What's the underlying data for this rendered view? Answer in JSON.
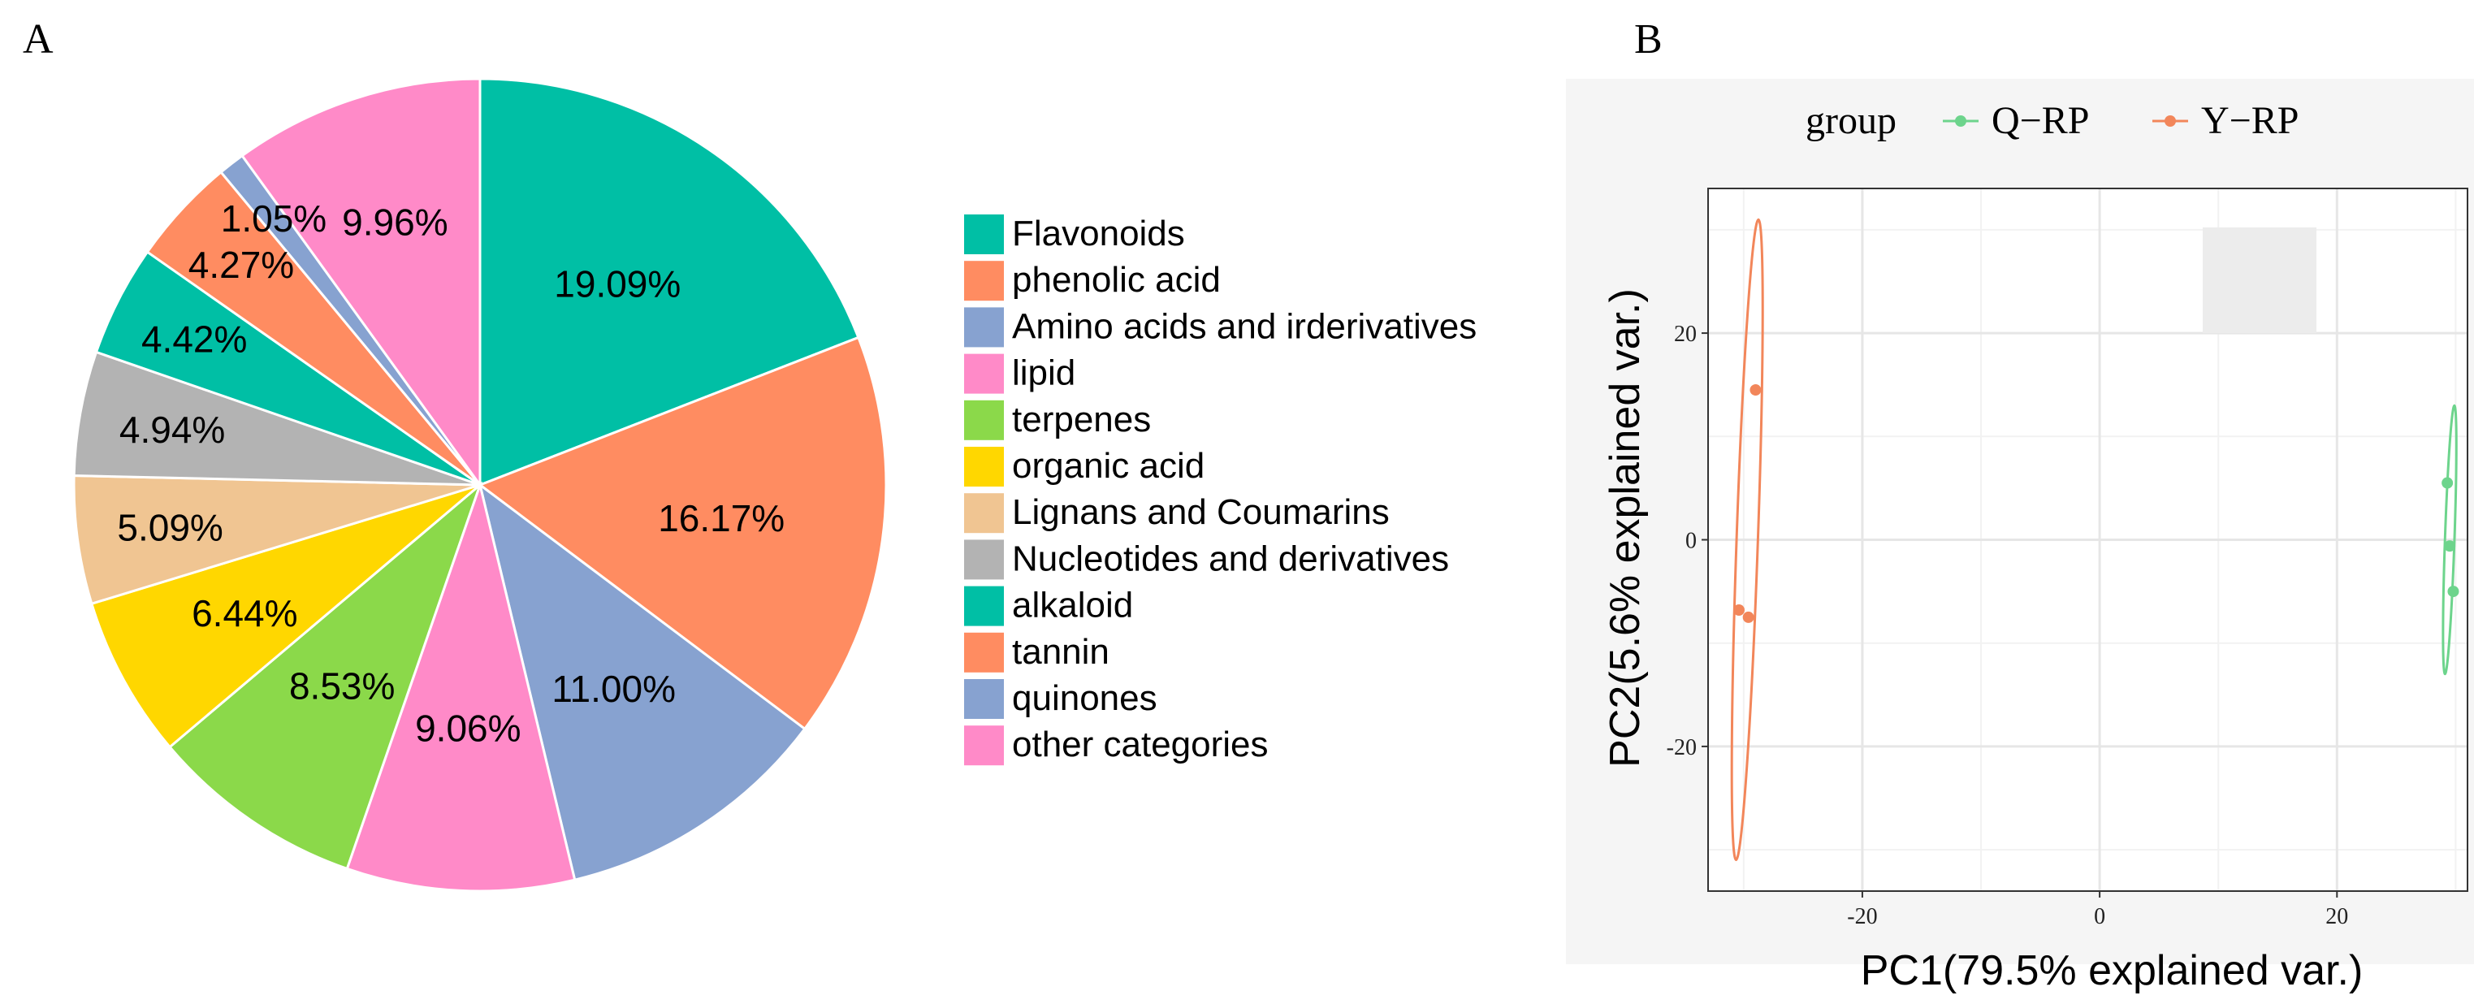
{
  "panel_a": {
    "label": "A",
    "chart_data": {
      "type": "pie",
      "title": "",
      "start": "12 o'clock",
      "direction": "clockwise",
      "categories": [
        "Flavonoids",
        "phenolic acid",
        "Amino acids and irderivatives",
        "lipid",
        "terpenes",
        "organic acid",
        "Lignans and Coumarins",
        "Nucleotides and derivatives",
        "alkaloid",
        "tannin",
        "quinones",
        "other categories"
      ],
      "values": [
        19.09,
        16.17,
        11.0,
        9.06,
        8.53,
        6.44,
        5.09,
        4.94,
        4.42,
        4.27,
        1.05,
        9.96
      ],
      "labels": [
        "19.09%",
        "16.17%",
        "11.00%",
        "9.06%",
        "8.53%",
        "6.44%",
        "5.09%",
        "4.94%",
        "4.42%",
        "4.27%",
        "1.05%",
        "9.96%"
      ],
      "colors": [
        "#00BFA5",
        "#FF8C61",
        "#87A2D0",
        "#FF8AC8",
        "#8BD94A",
        "#FFD700",
        "#F0C592",
        "#B3B3B3",
        "#00BFA5",
        "#FF8C61",
        "#87A2D0",
        "#FF8AC8"
      ],
      "legend_position": "right"
    }
  },
  "panel_b": {
    "label": "B",
    "chart_data": {
      "type": "scatter",
      "title": "",
      "xlabel": "PC1(79.5% explained var.)",
      "ylabel": "PC2(5.6% explained var.)",
      "xlim": [
        -33,
        31
      ],
      "ylim": [
        -34,
        34
      ],
      "xticks": [
        -20,
        0,
        20
      ],
      "xtick_labels": [
        "-20",
        "0",
        "20"
      ],
      "yticks": [
        20,
        0,
        -20
      ],
      "ytick_labels": [
        "20",
        "0",
        "-20"
      ],
      "grid": true,
      "legend_title": "group",
      "legend_position": "top",
      "series": [
        {
          "name": "Q−RP",
          "color": "#6DD48C",
          "points": [
            [
              29.3,
              5.5
            ],
            [
              29.5,
              -0.6
            ],
            [
              29.8,
              -5.0
            ]
          ],
          "ellipse": {
            "cx": 29.5,
            "cy": 0,
            "rx": 0.4,
            "ry": 13
          }
        },
        {
          "name": "Y−RP",
          "color": "#F2865A",
          "points": [
            [
              -29.0,
              14.5
            ],
            [
              -30.4,
              -6.8
            ],
            [
              -29.6,
              -7.5
            ]
          ],
          "ellipse": {
            "cx": -29.7,
            "cy": 0,
            "rx": 0.9,
            "ry": 31
          }
        }
      ]
    }
  }
}
